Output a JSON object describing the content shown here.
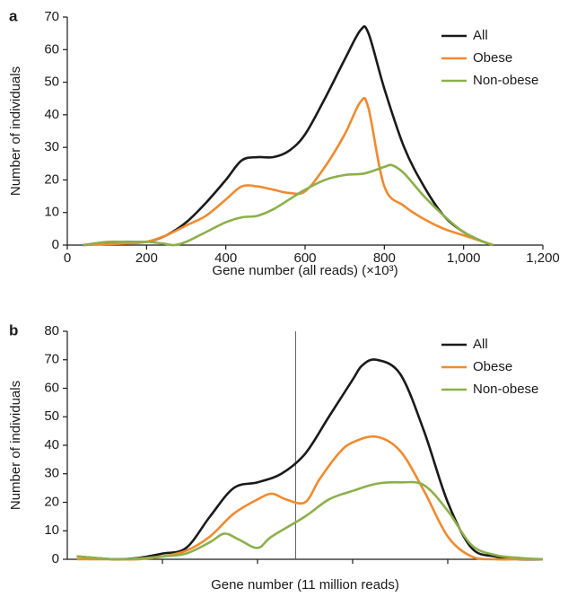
{
  "chart_data": [
    {
      "type": "line",
      "panel_label": "a",
      "xlabel": "Gene number (all reads) (×10³)",
      "ylabel": "Number of individuals",
      "xlim": [
        0,
        1200
      ],
      "xticks": [
        0,
        200,
        400,
        600,
        800,
        {
          "value": 1000,
          "label": "1,000"
        },
        {
          "value": 1200,
          "label": "1,200"
        }
      ],
      "ylim": [
        0,
        70
      ],
      "yticks": [
        0,
        10,
        20,
        30,
        40,
        50,
        60,
        70
      ],
      "legend_position": "upper right",
      "series": [
        {
          "name": "All",
          "color": "#1a1a1a",
          "x": [
            40,
            100,
            150,
            200,
            250,
            300,
            350,
            400,
            440,
            480,
            520,
            560,
            600,
            650,
            700,
            740,
            760,
            800,
            850,
            900,
            950,
            1000,
            1050,
            1075
          ],
          "values": [
            0,
            0.5,
            1,
            1,
            3,
            7,
            13,
            20,
            26,
            27,
            27,
            29,
            34,
            45,
            57,
            66,
            65,
            48,
            30,
            18,
            9,
            4,
            1,
            0
          ]
        },
        {
          "name": "Obese",
          "color": "#f08a2e",
          "x": [
            40,
            100,
            150,
            200,
            250,
            300,
            350,
            400,
            440,
            480,
            520,
            560,
            600,
            650,
            700,
            740,
            760,
            800,
            850,
            900,
            950,
            1000,
            1050,
            1075
          ],
          "values": [
            0,
            0.3,
            0.5,
            1,
            3,
            6,
            9,
            14,
            18,
            18,
            17,
            16,
            16.5,
            24,
            34,
            44,
            42,
            18,
            12,
            8,
            5,
            3,
            1,
            0
          ]
        },
        {
          "name": "Non-obese",
          "color": "#8cb04a",
          "x": [
            40,
            100,
            150,
            200,
            240,
            270,
            300,
            350,
            400,
            440,
            480,
            520,
            560,
            600,
            650,
            700,
            750,
            800,
            820,
            850,
            900,
            950,
            1000,
            1050,
            1075
          ],
          "values": [
            0,
            1,
            1,
            1,
            0.5,
            0,
            1,
            4,
            7,
            8.5,
            9,
            11,
            14,
            17,
            20,
            21.5,
            22,
            24,
            24.5,
            22,
            15,
            9,
            4,
            1,
            0
          ]
        }
      ]
    },
    {
      "type": "line",
      "panel_label": "b",
      "xlabel": "Gene number  (11 million reads)",
      "ylabel": "Number of individuals",
      "xlim": [
        0,
        10
      ],
      "xticks": [
        2,
        4,
        6,
        8
      ],
      "xtick_labels_shown": false,
      "vline": 4.8,
      "ylim": [
        0,
        80
      ],
      "yticks": [
        0,
        10,
        20,
        30,
        40,
        50,
        60,
        70,
        80
      ],
      "legend_position": "upper right",
      "series": [
        {
          "name": "All",
          "color": "#1a1a1a",
          "x": [
            0.2,
            1,
            1.5,
            2,
            2.5,
            3,
            3.5,
            4,
            4.5,
            5,
            5.5,
            6,
            6.2,
            6.5,
            7,
            7.5,
            8,
            8.5,
            9,
            9.5,
            10
          ],
          "values": [
            1,
            0,
            0.5,
            2,
            4,
            15,
            25,
            27,
            30,
            37,
            50,
            63,
            68,
            70,
            65,
            45,
            20,
            4,
            1,
            0,
            0
          ]
        },
        {
          "name": "Obese",
          "color": "#f08a2e",
          "x": [
            0.2,
            1,
            1.5,
            2,
            2.5,
            3,
            3.5,
            4,
            4.3,
            4.6,
            5,
            5.3,
            5.7,
            6,
            6.5,
            7,
            7.5,
            8,
            8.5,
            9,
            9.5,
            10
          ],
          "values": [
            0,
            0,
            0,
            1,
            3,
            8,
            16,
            21,
            23,
            21,
            20,
            28,
            37,
            41,
            43,
            38,
            24,
            8,
            1,
            0,
            0,
            0
          ]
        },
        {
          "name": "Non-obese",
          "color": "#8cb04a",
          "x": [
            0.2,
            1,
            1.5,
            2,
            2.5,
            3,
            3.3,
            3.6,
            4,
            4.3,
            5,
            5.5,
            6,
            6.5,
            7,
            7.5,
            8,
            8.5,
            9,
            9.5,
            10
          ],
          "values": [
            1,
            0,
            0.3,
            1,
            2,
            6,
            9,
            7,
            4,
            8,
            15,
            21,
            24,
            26.5,
            27,
            26,
            17,
            5,
            1.5,
            0.5,
            0
          ]
        }
      ]
    }
  ]
}
